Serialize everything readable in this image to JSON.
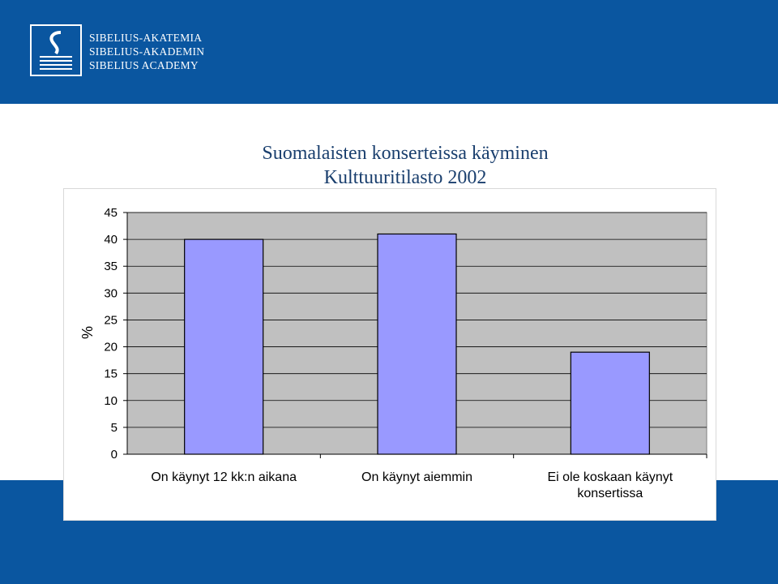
{
  "header": {
    "logo_lines": [
      "SIBELIUS-AKATEMIA",
      "SIBELIUS-AKADEMIN",
      "SIBELIUS ACADEMY"
    ],
    "background_color": "#0a56a0"
  },
  "chart_data": {
    "type": "bar",
    "title": "Suomalaisten konserteissa käyminen",
    "subtitle": "Kulttuuritilasto 2002",
    "xlabel": "",
    "ylabel": "%",
    "categories": [
      [
        "On käynyt 12 kk:n aikana"
      ],
      [
        "On käynyt aiemmin"
      ],
      [
        "Ei ole koskaan käynyt",
        "konsertissa"
      ]
    ],
    "values": [
      40,
      41,
      19
    ],
    "ylim": [
      0,
      45
    ],
    "yticks": [
      0,
      5,
      10,
      15,
      20,
      25,
      30,
      35,
      40,
      45
    ],
    "grid": true,
    "legend": "none",
    "bar_color": "#9999ff",
    "plot_background": "#c0c0c0"
  }
}
